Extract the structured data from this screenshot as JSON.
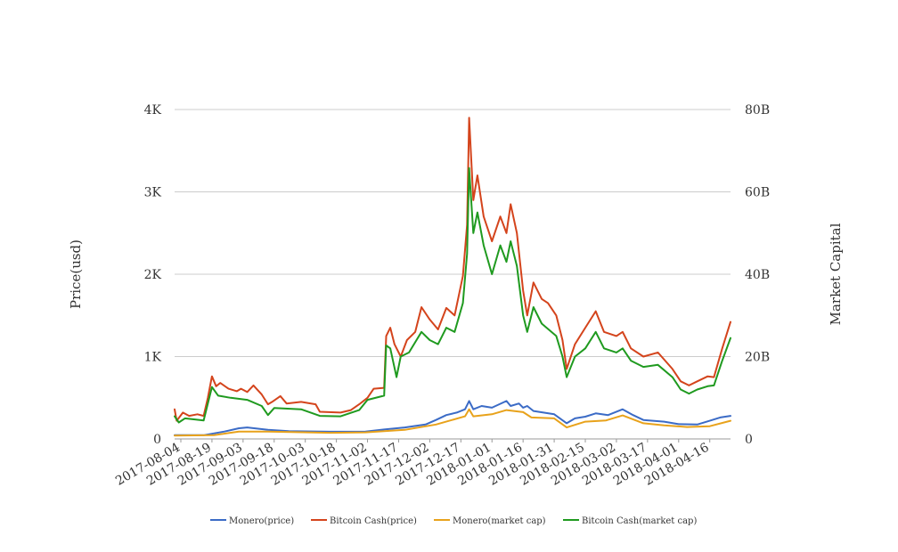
{
  "chart_data": {
    "type": "line",
    "ylabel_left": "Price(usd)",
    "ylabel_right": "Market Capital",
    "y_left": {
      "lim": [
        0,
        4000
      ],
      "ticks": [
        "0",
        "1K",
        "2K",
        "3K",
        "4K"
      ]
    },
    "y_right": {
      "lim": [
        0,
        80000000000
      ],
      "ticks": [
        "0",
        "20B",
        "40B",
        "60B",
        "80B"
      ]
    },
    "x_range": [
      "2017-08-01",
      "2018-04-26"
    ],
    "x_ticks": [
      "2017-08-04",
      "2017-08-19",
      "2017-09-03",
      "2017-09-18",
      "2017-10-03",
      "2017-10-18",
      "2017-11-02",
      "2017-11-17",
      "2017-12-02",
      "2017-12-17",
      "2018-01-01",
      "2018-01-16",
      "2018-01-31",
      "2018-02-15",
      "2018-03-02",
      "2018-03-17",
      "2018-04-01",
      "2018-04-16"
    ],
    "grid": true,
    "legend_position": "bottom",
    "series": [
      {
        "name": "Monero(price)",
        "axis": "left",
        "color": "#3b6bc6",
        "points": [
          [
            "2017-08-01",
            45
          ],
          [
            "2017-08-15",
            45
          ],
          [
            "2017-08-25",
            90
          ],
          [
            "2017-09-01",
            130
          ],
          [
            "2017-09-05",
            140
          ],
          [
            "2017-09-15",
            110
          ],
          [
            "2017-09-25",
            95
          ],
          [
            "2017-10-15",
            88
          ],
          [
            "2017-11-01",
            90
          ],
          [
            "2017-11-10",
            115
          ],
          [
            "2017-11-20",
            140
          ],
          [
            "2017-11-30",
            175
          ],
          [
            "2017-12-05",
            230
          ],
          [
            "2017-12-10",
            290
          ],
          [
            "2017-12-15",
            320
          ],
          [
            "2017-12-19",
            360
          ],
          [
            "2017-12-21",
            460
          ],
          [
            "2017-12-23",
            360
          ],
          [
            "2017-12-27",
            400
          ],
          [
            "2018-01-01",
            380
          ],
          [
            "2018-01-08",
            460
          ],
          [
            "2018-01-10",
            400
          ],
          [
            "2018-01-14",
            430
          ],
          [
            "2018-01-16",
            380
          ],
          [
            "2018-01-18",
            400
          ],
          [
            "2018-01-21",
            340
          ],
          [
            "2018-01-31",
            300
          ],
          [
            "2018-02-06",
            190
          ],
          [
            "2018-02-10",
            250
          ],
          [
            "2018-02-15",
            270
          ],
          [
            "2018-02-20",
            310
          ],
          [
            "2018-02-26",
            290
          ],
          [
            "2018-03-05",
            360
          ],
          [
            "2018-03-10",
            290
          ],
          [
            "2018-03-15",
            230
          ],
          [
            "2018-03-25",
            210
          ],
          [
            "2018-04-01",
            180
          ],
          [
            "2018-04-10",
            175
          ],
          [
            "2018-04-16",
            220
          ],
          [
            "2018-04-21",
            260
          ],
          [
            "2018-04-26",
            280
          ]
        ]
      },
      {
        "name": "Bitcoin Cash(price)",
        "axis": "left",
        "color": "#d4441c",
        "points": [
          [
            "2017-08-01",
            360
          ],
          [
            "2017-08-02",
            220
          ],
          [
            "2017-08-05",
            320
          ],
          [
            "2017-08-08",
            280
          ],
          [
            "2017-08-12",
            300
          ],
          [
            "2017-08-15",
            280
          ],
          [
            "2017-08-17",
            500
          ],
          [
            "2017-08-19",
            760
          ],
          [
            "2017-08-21",
            640
          ],
          [
            "2017-08-23",
            680
          ],
          [
            "2017-08-27",
            610
          ],
          [
            "2017-08-31",
            580
          ],
          [
            "2017-09-02",
            610
          ],
          [
            "2017-09-05",
            570
          ],
          [
            "2017-09-08",
            650
          ],
          [
            "2017-09-12",
            540
          ],
          [
            "2017-09-15",
            420
          ],
          [
            "2017-09-17",
            450
          ],
          [
            "2017-09-21",
            520
          ],
          [
            "2017-09-24",
            430
          ],
          [
            "2017-10-01",
            450
          ],
          [
            "2017-10-08",
            420
          ],
          [
            "2017-10-10",
            330
          ],
          [
            "2017-10-20",
            320
          ],
          [
            "2017-10-25",
            350
          ],
          [
            "2017-10-29",
            420
          ],
          [
            "2017-11-02",
            500
          ],
          [
            "2017-11-05",
            610
          ],
          [
            "2017-11-10",
            620
          ],
          [
            "2017-11-11",
            1250
          ],
          [
            "2017-11-13",
            1350
          ],
          [
            "2017-11-15",
            1150
          ],
          [
            "2017-11-18",
            1000
          ],
          [
            "2017-11-21",
            1200
          ],
          [
            "2017-11-25",
            1300
          ],
          [
            "2017-11-28",
            1600
          ],
          [
            "2017-12-02",
            1450
          ],
          [
            "2017-12-06",
            1330
          ],
          [
            "2017-12-10",
            1590
          ],
          [
            "2017-12-14",
            1500
          ],
          [
            "2017-12-18",
            1980
          ],
          [
            "2017-12-20",
            2600
          ],
          [
            "2017-12-21",
            3900
          ],
          [
            "2017-12-23",
            2900
          ],
          [
            "2017-12-25",
            3200
          ],
          [
            "2017-12-28",
            2700
          ],
          [
            "2018-01-01",
            2400
          ],
          [
            "2018-01-05",
            2700
          ],
          [
            "2018-01-08",
            2500
          ],
          [
            "2018-01-10",
            2850
          ],
          [
            "2018-01-13",
            2500
          ],
          [
            "2018-01-16",
            1800
          ],
          [
            "2018-01-18",
            1500
          ],
          [
            "2018-01-21",
            1900
          ],
          [
            "2018-01-25",
            1700
          ],
          [
            "2018-01-28",
            1650
          ],
          [
            "2018-02-01",
            1500
          ],
          [
            "2018-02-04",
            1200
          ],
          [
            "2018-02-06",
            850
          ],
          [
            "2018-02-10",
            1150
          ],
          [
            "2018-02-15",
            1350
          ],
          [
            "2018-02-20",
            1550
          ],
          [
            "2018-02-24",
            1300
          ],
          [
            "2018-03-02",
            1250
          ],
          [
            "2018-03-05",
            1300
          ],
          [
            "2018-03-09",
            1100
          ],
          [
            "2018-03-15",
            1000
          ],
          [
            "2018-03-22",
            1050
          ],
          [
            "2018-03-29",
            850
          ],
          [
            "2018-04-02",
            700
          ],
          [
            "2018-04-06",
            650
          ],
          [
            "2018-04-10",
            700
          ],
          [
            "2018-04-15",
            760
          ],
          [
            "2018-04-18",
            750
          ],
          [
            "2018-04-22",
            1100
          ],
          [
            "2018-04-26",
            1420
          ]
        ]
      },
      {
        "name": "Monero(market cap)",
        "axis": "right",
        "color": "#e8a21b",
        "points": [
          [
            "2017-08-01",
            800000000
          ],
          [
            "2017-08-20",
            900000000
          ],
          [
            "2017-09-01",
            1800000000
          ],
          [
            "2017-09-15",
            1800000000
          ],
          [
            "2017-10-15",
            1500000000
          ],
          [
            "2017-11-01",
            1600000000
          ],
          [
            "2017-11-20",
            2200000000
          ],
          [
            "2017-12-05",
            3500000000
          ],
          [
            "2017-12-19",
            5500000000
          ],
          [
            "2017-12-21",
            7200000000
          ],
          [
            "2017-12-23",
            5500000000
          ],
          [
            "2018-01-01",
            6000000000
          ],
          [
            "2018-01-08",
            7000000000
          ],
          [
            "2018-01-16",
            6500000000
          ],
          [
            "2018-01-20",
            5200000000
          ],
          [
            "2018-01-31",
            5000000000
          ],
          [
            "2018-02-06",
            2800000000
          ],
          [
            "2018-02-15",
            4200000000
          ],
          [
            "2018-02-25",
            4500000000
          ],
          [
            "2018-03-05",
            5700000000
          ],
          [
            "2018-03-15",
            3800000000
          ],
          [
            "2018-03-25",
            3300000000
          ],
          [
            "2018-04-05",
            2900000000
          ],
          [
            "2018-04-16",
            3100000000
          ],
          [
            "2018-04-26",
            4400000000
          ]
        ]
      },
      {
        "name": "Bitcoin Cash(market cap)",
        "axis": "right",
        "color": "#1f9a1f",
        "points": [
          [
            "2017-08-01",
            5500000000
          ],
          [
            "2017-08-03",
            4000000000
          ],
          [
            "2017-08-06",
            5000000000
          ],
          [
            "2017-08-15",
            4500000000
          ],
          [
            "2017-08-19",
            12600000000
          ],
          [
            "2017-08-22",
            10500000000
          ],
          [
            "2017-08-28",
            10000000000
          ],
          [
            "2017-09-05",
            9500000000
          ],
          [
            "2017-09-12",
            8000000000
          ],
          [
            "2017-09-15",
            5800000000
          ],
          [
            "2017-09-18",
            7500000000
          ],
          [
            "2017-10-01",
            7200000000
          ],
          [
            "2017-10-10",
            5600000000
          ],
          [
            "2017-10-20",
            5500000000
          ],
          [
            "2017-10-29",
            7000000000
          ],
          [
            "2017-11-02",
            9500000000
          ],
          [
            "2017-11-10",
            10500000000
          ],
          [
            "2017-11-11",
            22700000000
          ],
          [
            "2017-11-13",
            22000000000
          ],
          [
            "2017-11-16",
            15000000000
          ],
          [
            "2017-11-18",
            20000000000
          ],
          [
            "2017-11-22",
            21000000000
          ],
          [
            "2017-11-28",
            26000000000
          ],
          [
            "2017-12-02",
            24000000000
          ],
          [
            "2017-12-06",
            23000000000
          ],
          [
            "2017-12-10",
            27000000000
          ],
          [
            "2017-12-14",
            26000000000
          ],
          [
            "2017-12-18",
            33000000000
          ],
          [
            "2017-12-20",
            45000000000
          ],
          [
            "2017-12-21",
            65800000000
          ],
          [
            "2017-12-23",
            50000000000
          ],
          [
            "2017-12-25",
            55000000000
          ],
          [
            "2017-12-28",
            47000000000
          ],
          [
            "2018-01-01",
            40000000000
          ],
          [
            "2018-01-05",
            47000000000
          ],
          [
            "2018-01-08",
            43000000000
          ],
          [
            "2018-01-10",
            48000000000
          ],
          [
            "2018-01-13",
            42000000000
          ],
          [
            "2018-01-16",
            30000000000
          ],
          [
            "2018-01-18",
            26000000000
          ],
          [
            "2018-01-21",
            32000000000
          ],
          [
            "2018-01-25",
            28000000000
          ],
          [
            "2018-02-01",
            25000000000
          ],
          [
            "2018-02-04",
            20000000000
          ],
          [
            "2018-02-06",
            15000000000
          ],
          [
            "2018-02-10",
            20000000000
          ],
          [
            "2018-02-15",
            22000000000
          ],
          [
            "2018-02-20",
            26000000000
          ],
          [
            "2018-02-24",
            22000000000
          ],
          [
            "2018-03-02",
            21000000000
          ],
          [
            "2018-03-05",
            22000000000
          ],
          [
            "2018-03-09",
            19000000000
          ],
          [
            "2018-03-15",
            17500000000
          ],
          [
            "2018-03-22",
            18000000000
          ],
          [
            "2018-03-29",
            15000000000
          ],
          [
            "2018-04-02",
            12000000000
          ],
          [
            "2018-04-06",
            11000000000
          ],
          [
            "2018-04-10",
            12000000000
          ],
          [
            "2018-04-15",
            12800000000
          ],
          [
            "2018-04-18",
            13000000000
          ],
          [
            "2018-04-22",
            19000000000
          ],
          [
            "2018-04-26",
            24500000000
          ]
        ]
      }
    ]
  }
}
